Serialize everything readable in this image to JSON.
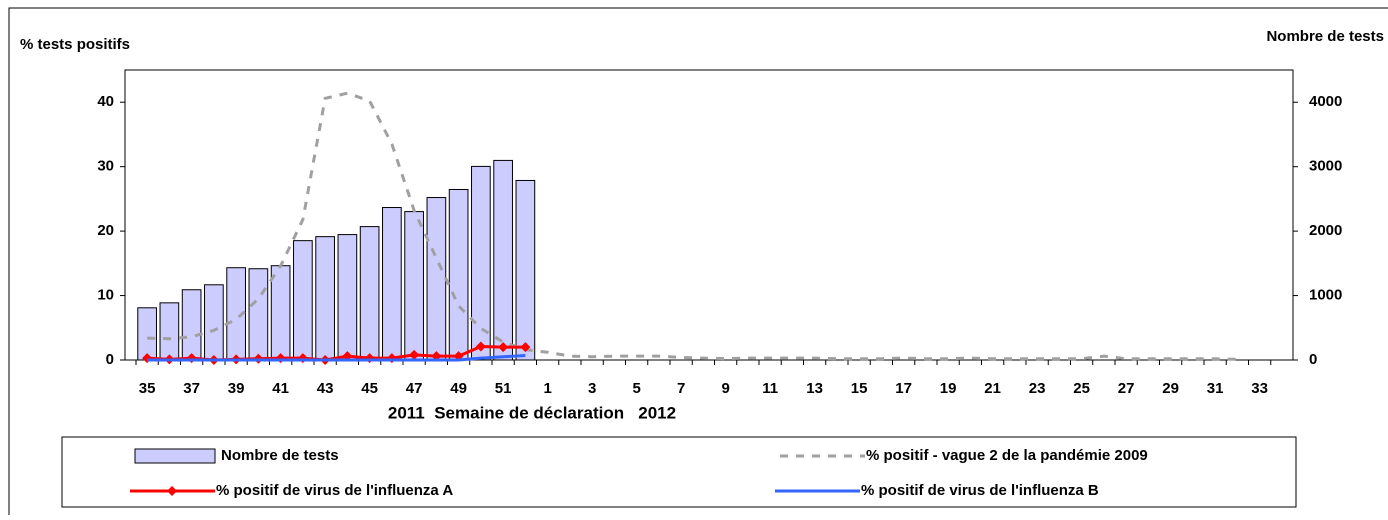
{
  "chart_data": {
    "type": "combo",
    "title": "% tests positifs",
    "y2_title": "Nombre de tests",
    "x_title": "2011  Semaine de déclaration   2012",
    "categories": [
      "35",
      null,
      "37",
      null,
      "39",
      null,
      "41",
      null,
      "43",
      null,
      "45",
      null,
      "47",
      null,
      "49",
      null,
      "51",
      null,
      "1",
      null,
      "3",
      null,
      "5",
      null,
      "7",
      null,
      "9",
      null,
      "11",
      null,
      "13",
      null,
      "15",
      null,
      "17",
      null,
      "19",
      null,
      "21",
      null,
      "23",
      null,
      "25",
      null,
      "27",
      null,
      "29",
      null,
      "31",
      null,
      "33",
      null
    ],
    "ylim": [
      0,
      45
    ],
    "yticks": [
      0,
      10,
      20,
      30,
      40
    ],
    "y2lim": [
      0,
      4500
    ],
    "y2ticks": [
      0,
      1000,
      2000,
      3000,
      4000
    ],
    "series": [
      {
        "name": "Nombre de tests",
        "type": "bar",
        "axis": "y2",
        "color": "#ccccff",
        "values": [
          810,
          887,
          1090,
          1167,
          1432,
          1416,
          1463,
          1852,
          1914,
          1946,
          2070,
          2366,
          2303,
          2521,
          2646,
          3004,
          3097,
          2786,
          null,
          null,
          null,
          null,
          null,
          null,
          null,
          null,
          null,
          null,
          null,
          null,
          null,
          null,
          null,
          null,
          null,
          null,
          null,
          null,
          null,
          null,
          null,
          null,
          null,
          null,
          null,
          null,
          null,
          null,
          null,
          null,
          null,
          null
        ]
      },
      {
        "name": "% positif - vague 2 de la pandémie 2009",
        "type": "line",
        "line_style": "dashed",
        "color": "#a0a0a0",
        "values": [
          3.4,
          3.3,
          3.6,
          4.6,
          6.3,
          9.5,
          14.6,
          21.8,
          40.6,
          41.4,
          40.2,
          33.5,
          23.2,
          15.8,
          8.4,
          4.9,
          2.8,
          1.6,
          1.2,
          0.6,
          0.5,
          0.6,
          0.6,
          0.6,
          0.4,
          0.3,
          0.2,
          0.3,
          0.3,
          0.3,
          0.3,
          0.2,
          0.2,
          0.2,
          0.3,
          0.2,
          0.2,
          0.3,
          0.2,
          0.2,
          0.2,
          0.2,
          0.2,
          0.6,
          0.2,
          0.2,
          0.2,
          0.2,
          0.2,
          0.1,
          null,
          null
        ]
      },
      {
        "name": "% positif de virus de l'influenza A",
        "type": "line",
        "line_style": "solid",
        "marker": "diamond",
        "color": "#ff0000",
        "values": [
          0.3,
          0.1,
          0.3,
          0,
          0.1,
          0.2,
          0.3,
          0.3,
          0,
          0.6,
          0.3,
          0.3,
          0.8,
          0.6,
          0.6,
          2.1,
          2,
          2,
          null,
          null,
          null,
          null,
          null,
          null,
          null,
          null,
          null,
          null,
          null,
          null,
          null,
          null,
          null,
          null,
          null,
          null,
          null,
          null,
          null,
          null,
          null,
          null,
          null,
          null,
          null,
          null,
          null,
          null,
          null,
          null,
          null,
          null
        ]
      },
      {
        "name": "% positif de virus de l'influenza B",
        "type": "line",
        "line_style": "solid",
        "color": "#3366ff",
        "values": [
          0,
          0,
          0,
          0,
          0,
          0,
          0,
          0,
          0,
          0,
          0,
          0,
          0,
          0,
          0,
          0.3,
          0.5,
          0.7,
          null,
          null,
          null,
          null,
          null,
          null,
          null,
          null,
          null,
          null,
          null,
          null,
          null,
          null,
          null,
          null,
          null,
          null,
          null,
          null,
          null,
          null,
          null,
          null,
          null,
          null,
          null,
          null,
          null,
          null,
          null,
          null,
          null,
          null
        ]
      }
    ]
  }
}
